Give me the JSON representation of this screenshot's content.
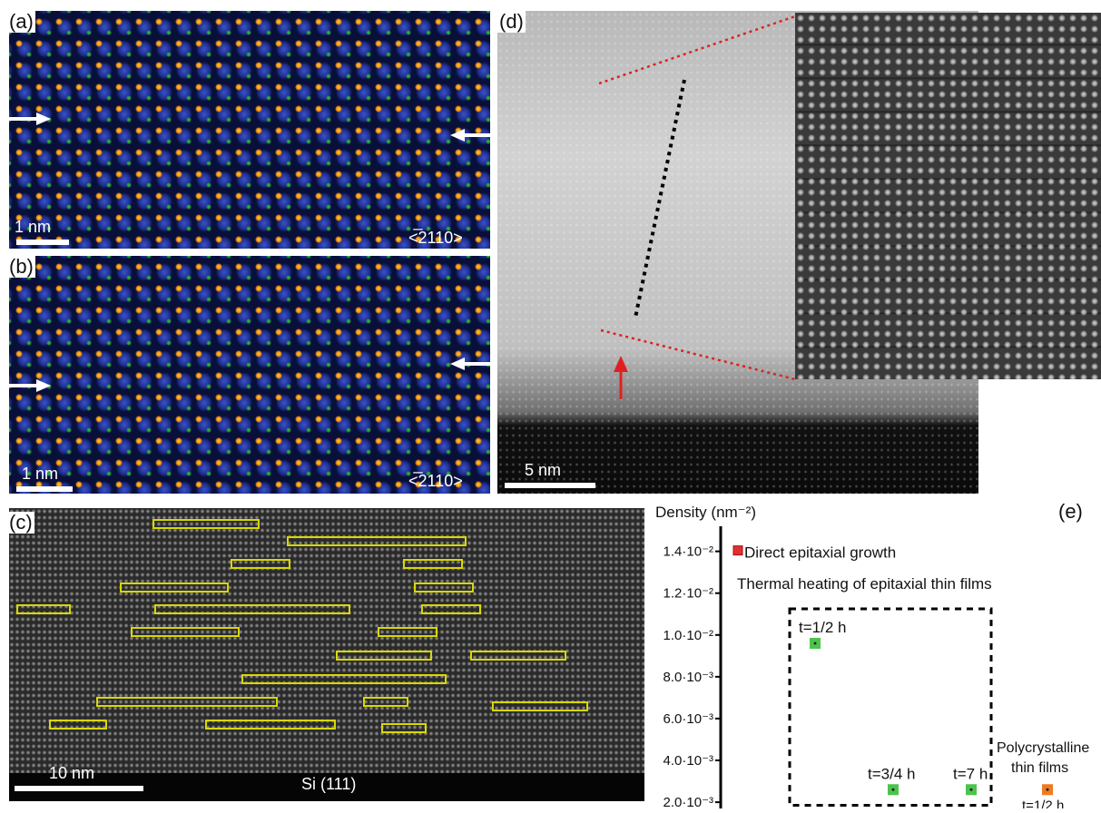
{
  "figure": {
    "panel_a": {
      "label": "(a)",
      "scale_label": "1 nm",
      "direction": "<̅2110>"
    },
    "panel_b": {
      "label": "(b)",
      "scale_label": "1 nm",
      "direction": "<̅2110>"
    },
    "panel_c": {
      "label": "(c)",
      "scale_label": "10 nm",
      "substrate": "Si (111)"
    },
    "panel_d": {
      "label": "(d)",
      "scale_label": "5 nm"
    },
    "panel_e": {
      "label": "(e)"
    }
  },
  "chart_data": {
    "type": "scatter",
    "ylabel": "Density (nm⁻²)",
    "yticks": [
      "1.4·10⁻²",
      "1.2·10⁻²",
      "1.0·10⁻²",
      "8.0·10⁻³",
      "6.0·10⁻³",
      "4.0·10⁻³",
      "2.0·10⁻³"
    ],
    "ytick_values": [
      0.014,
      0.012,
      0.01,
      0.008,
      0.006,
      0.004,
      0.002
    ],
    "ylim": [
      0.0017,
      0.0152
    ],
    "annotations": {
      "direct": "Direct epitaxial growth",
      "thermal": "Thermal heating of epitaxial thin films",
      "poly_line1": "Polycrystalline",
      "poly_line2": "thin films"
    },
    "points": [
      {
        "label": "t=1/2 h",
        "y": 0.0096,
        "group": "thermal",
        "color": "#4cc44c"
      },
      {
        "label": "t=3/4 h",
        "y": 0.0026,
        "group": "thermal",
        "color": "#4cc44c"
      },
      {
        "label": "t=7 h",
        "y": 0.0026,
        "group": "thermal",
        "color": "#4cc44c"
      },
      {
        "label": "t=1/2 h",
        "y": 0.0026,
        "group": "polycrystalline",
        "color": "#f07a20"
      }
    ],
    "legend_marker": {
      "y": 0.014,
      "color": "#e03030"
    }
  }
}
